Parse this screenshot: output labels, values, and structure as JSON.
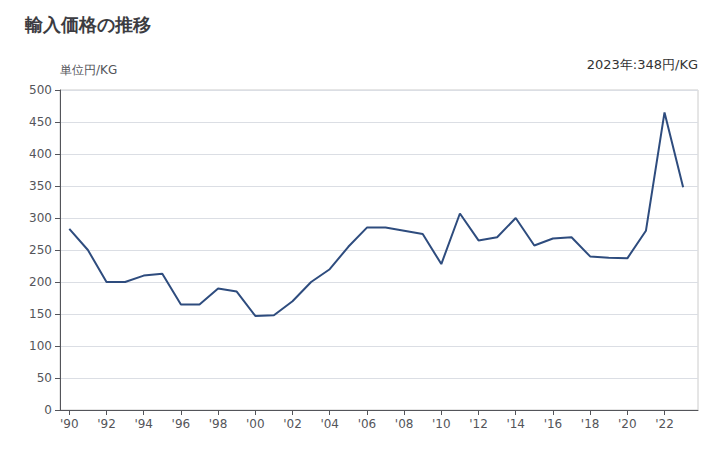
{
  "chart_data": {
    "type": "line",
    "title": "輸入価格の推移",
    "ylabel": "単位円/KG",
    "annotation": "2023年:348円/KG",
    "x": [
      1990,
      1991,
      1992,
      1993,
      1994,
      1995,
      1996,
      1997,
      1998,
      1999,
      2000,
      2001,
      2002,
      2003,
      2004,
      2005,
      2006,
      2007,
      2008,
      2009,
      2010,
      2011,
      2012,
      2013,
      2014,
      2015,
      2016,
      2017,
      2018,
      2019,
      2020,
      2021,
      2022,
      2023
    ],
    "values": [
      283,
      250,
      200,
      200,
      210,
      213,
      165,
      165,
      190,
      185,
      147,
      148,
      170,
      200,
      220,
      255,
      285,
      285,
      280,
      275,
      228,
      307,
      265,
      270,
      300,
      257,
      268,
      270,
      240,
      238,
      237,
      280,
      465,
      348
    ],
    "color": "#2e4c7e",
    "xlim": [
      1989.5,
      2023.8
    ],
    "xticks": [
      {
        "value": 1990,
        "label": "'90"
      },
      {
        "value": 1992,
        "label": "'92"
      },
      {
        "value": 1994,
        "label": "'94"
      },
      {
        "value": 1996,
        "label": "'96"
      },
      {
        "value": 1998,
        "label": "'98"
      },
      {
        "value": 2000,
        "label": "'00"
      },
      {
        "value": 2002,
        "label": "'02"
      },
      {
        "value": 2004,
        "label": "'04"
      },
      {
        "value": 2006,
        "label": "'06"
      },
      {
        "value": 2008,
        "label": "'08"
      },
      {
        "value": 2010,
        "label": "'10"
      },
      {
        "value": 2012,
        "label": "'12"
      },
      {
        "value": 2014,
        "label": "'14"
      },
      {
        "value": 2016,
        "label": "'16"
      },
      {
        "value": 2018,
        "label": "'18"
      },
      {
        "value": 2020,
        "label": "'20"
      },
      {
        "value": 2022,
        "label": "'22"
      }
    ],
    "ylim": [
      0,
      500
    ],
    "yticks": [
      0,
      50,
      100,
      150,
      200,
      250,
      300,
      350,
      400,
      450,
      500
    ],
    "grid": true
  }
}
